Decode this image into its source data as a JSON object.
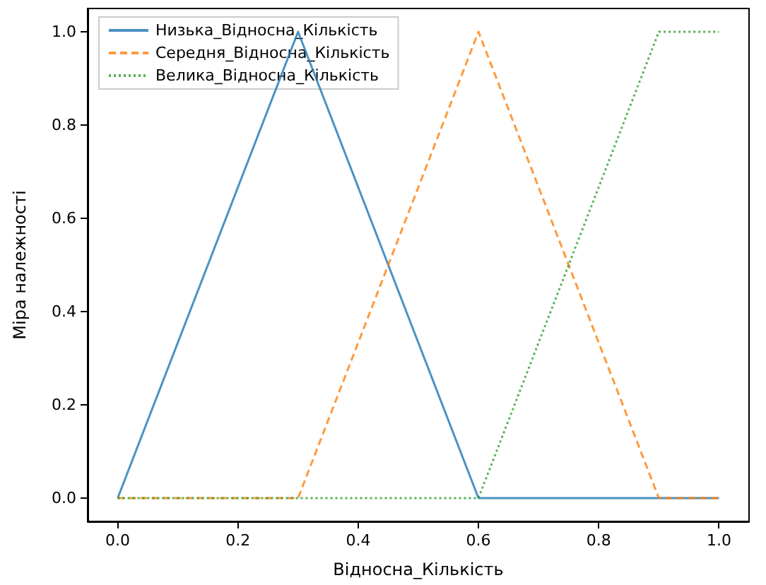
{
  "chart_data": {
    "type": "line",
    "xlabel": "Відносна_Кількість",
    "ylabel": "Міра належності",
    "series": [
      {
        "name": "Низька_Відносна_Кількість",
        "color": "#1f77b4",
        "line_style": "solid",
        "x": [
          0,
          0.3,
          0.6,
          1.0
        ],
        "values": [
          0,
          1,
          0,
          0
        ]
      },
      {
        "name": "Середня_Відносна_Кількість",
        "color": "#ff7f0e",
        "line_style": "dashed",
        "x": [
          0,
          0.3,
          0.6,
          0.9,
          1.0
        ],
        "values": [
          0,
          0,
          1,
          0,
          0
        ]
      },
      {
        "name": "Велика_Відносна_Кількість",
        "color": "#2ca02c",
        "line_style": "dotted",
        "x": [
          0,
          0.6,
          0.9,
          1.0
        ],
        "values": [
          0,
          0,
          1,
          1
        ]
      }
    ],
    "xlim": [
      -0.05,
      1.05
    ],
    "ylim": [
      -0.05,
      1.05
    ],
    "xticks": [
      {
        "value": 0,
        "label": "0.0"
      },
      0.2,
      0.4,
      0.6,
      0.8,
      {
        "value": 1,
        "label": "1.0"
      }
    ],
    "yticks": [
      {
        "value": 0,
        "label": "0.0"
      },
      0.2,
      0.4,
      0.6,
      0.8,
      {
        "value": 1,
        "label": "1.0"
      }
    ],
    "grid": false,
    "legend": "top left",
    "marker": "none"
  }
}
